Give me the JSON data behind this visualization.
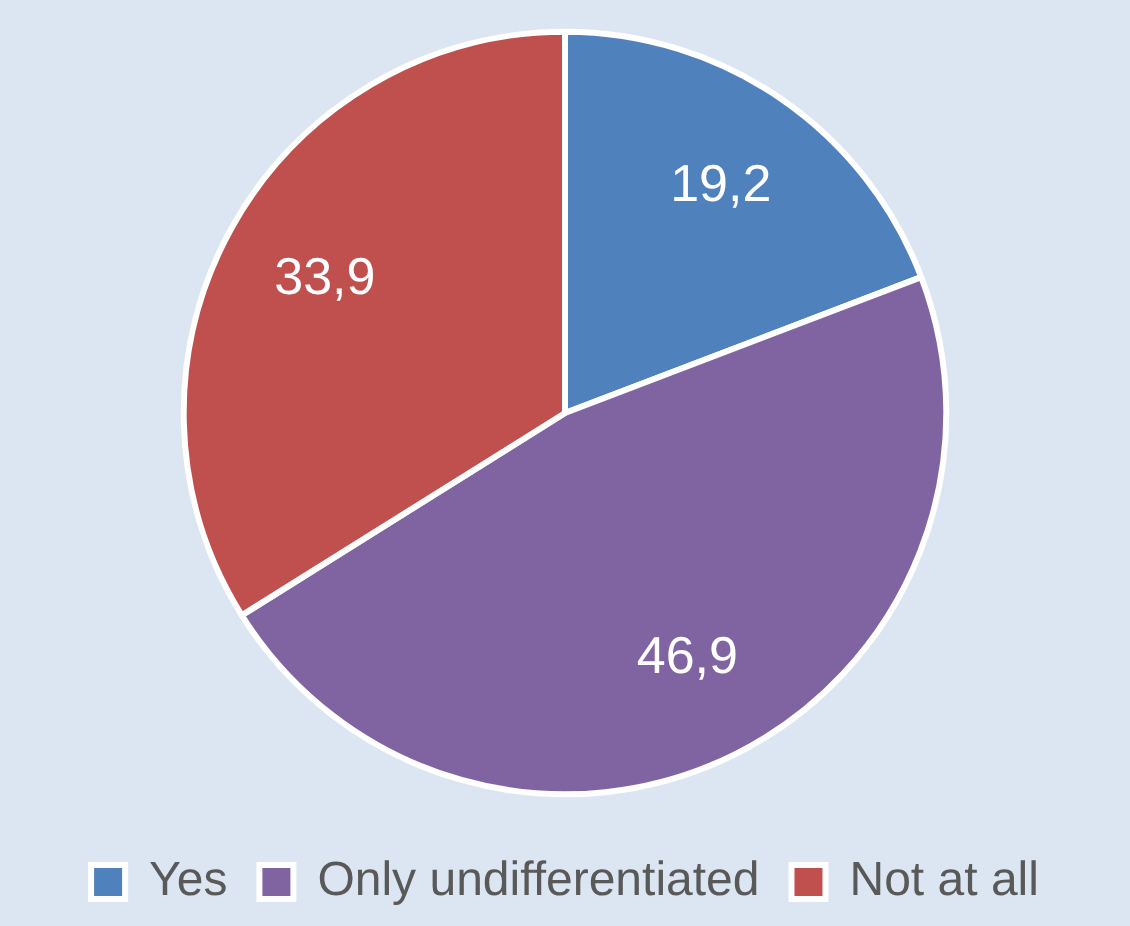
{
  "chart_data": {
    "type": "pie",
    "categories": [
      "Yes",
      "Only undifferentiated",
      "Not at all"
    ],
    "values": [
      19.2,
      46.9,
      33.9
    ],
    "colors": [
      "#4f81bd",
      "#8064a2",
      "#c0504d"
    ],
    "value_labels": [
      "19,2",
      "46,9",
      "33,9"
    ],
    "legend": "bottom"
  }
}
